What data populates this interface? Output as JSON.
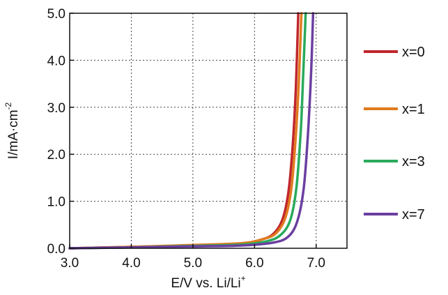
{
  "chart_data": {
    "type": "line",
    "title": "",
    "xlabel": {
      "base": "E/V vs. Li/Li",
      "sup": "+"
    },
    "ylabel": {
      "base": "I/mA·cm",
      "sup": "-2"
    },
    "xlim": [
      3.0,
      7.5
    ],
    "ylim": [
      0.0,
      5.0
    ],
    "x_ticks": [
      "3.0",
      "4.0",
      "5.0",
      "6.0",
      "7.0"
    ],
    "y_ticks": [
      "0.0",
      "1.0",
      "2.0",
      "3.0",
      "4.0",
      "5.0"
    ],
    "grid": true,
    "legend_position": "right",
    "series": [
      {
        "name": "x=0",
        "color": "#c0262d",
        "points": [
          [
            3.0,
            0.0
          ],
          [
            4.0,
            0.03
          ],
          [
            5.0,
            0.06
          ],
          [
            5.8,
            0.1
          ],
          [
            6.1,
            0.18
          ],
          [
            6.3,
            0.3
          ],
          [
            6.45,
            0.6
          ],
          [
            6.55,
            1.2
          ],
          [
            6.62,
            2.2
          ],
          [
            6.67,
            3.4
          ],
          [
            6.71,
            5.0
          ]
        ]
      },
      {
        "name": "x=1",
        "color": "#e07b1f",
        "points": [
          [
            3.0,
            0.0
          ],
          [
            4.0,
            0.03
          ],
          [
            5.0,
            0.07
          ],
          [
            5.8,
            0.11
          ],
          [
            6.15,
            0.2
          ],
          [
            6.35,
            0.32
          ],
          [
            6.5,
            0.65
          ],
          [
            6.6,
            1.3
          ],
          [
            6.67,
            2.4
          ],
          [
            6.72,
            3.6
          ],
          [
            6.76,
            5.0
          ]
        ]
      },
      {
        "name": "x=3",
        "color": "#2aaa5c",
        "points": [
          [
            3.0,
            0.0
          ],
          [
            4.0,
            0.02
          ],
          [
            5.0,
            0.05
          ],
          [
            5.8,
            0.08
          ],
          [
            6.2,
            0.15
          ],
          [
            6.42,
            0.28
          ],
          [
            6.58,
            0.6
          ],
          [
            6.68,
            1.3
          ],
          [
            6.75,
            2.5
          ],
          [
            6.79,
            3.7
          ],
          [
            6.83,
            5.0
          ]
        ]
      },
      {
        "name": "x=7",
        "color": "#6b3fa0",
        "points": [
          [
            3.0,
            0.0
          ],
          [
            4.0,
            0.02
          ],
          [
            5.0,
            0.04
          ],
          [
            5.8,
            0.06
          ],
          [
            6.3,
            0.12
          ],
          [
            6.55,
            0.25
          ],
          [
            6.7,
            0.6
          ],
          [
            6.8,
            1.3
          ],
          [
            6.87,
            2.5
          ],
          [
            6.92,
            3.8
          ],
          [
            6.95,
            5.0
          ]
        ]
      }
    ]
  }
}
